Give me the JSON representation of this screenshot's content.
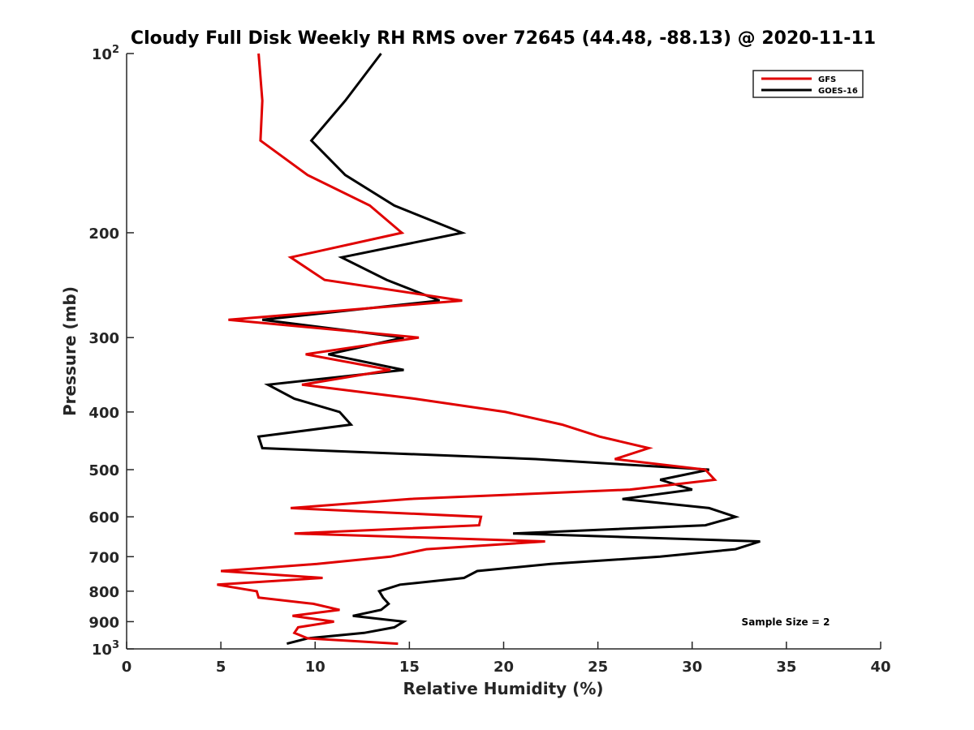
{
  "chart_data": {
    "type": "line",
    "title": "Cloudy Full Disk Weekly RH RMS over 72645 (44.48, -88.13) @ 2020-11-11",
    "xlabel": "Relative Humidity (%)",
    "ylabel": "Pressure (mb)",
    "xlim": [
      0,
      40
    ],
    "ylim": [
      100,
      1000
    ],
    "yscale": "log",
    "y_reversed": true,
    "grid": false,
    "legend_position": "top-right",
    "x_ticks": [
      0,
      5,
      10,
      15,
      20,
      25,
      30,
      35,
      40
    ],
    "y_ticks": [
      {
        "value": 100,
        "label": "10",
        "sup": "2"
      },
      {
        "value": 200,
        "label": "200",
        "sup": ""
      },
      {
        "value": 300,
        "label": "300",
        "sup": ""
      },
      {
        "value": 400,
        "label": "400",
        "sup": ""
      },
      {
        "value": 500,
        "label": "500",
        "sup": ""
      },
      {
        "value": 600,
        "label": "600",
        "sup": ""
      },
      {
        "value": 700,
        "label": "700",
        "sup": ""
      },
      {
        "value": 800,
        "label": "800",
        "sup": ""
      },
      {
        "value": 900,
        "label": "900",
        "sup": ""
      },
      {
        "value": 1000,
        "label": "10",
        "sup": "3"
      }
    ],
    "annotation": "Sample Size = 2",
    "series": [
      {
        "name": "GFS",
        "color": "#e00000",
        "points": [
          [
            7.0,
            100
          ],
          [
            7.2,
            120
          ],
          [
            7.1,
            140
          ],
          [
            9.6,
            160
          ],
          [
            12.9,
            180
          ],
          [
            14.6,
            200
          ],
          [
            8.7,
            220
          ],
          [
            10.5,
            240
          ],
          [
            17.8,
            260
          ],
          [
            5.4,
            280
          ],
          [
            15.5,
            300
          ],
          [
            9.5,
            320
          ],
          [
            14.0,
            340
          ],
          [
            9.3,
            360
          ],
          [
            15.3,
            380
          ],
          [
            20.1,
            400
          ],
          [
            23.1,
            420
          ],
          [
            25.1,
            440
          ],
          [
            27.7,
            460
          ],
          [
            25.9,
            480
          ],
          [
            30.7,
            500
          ],
          [
            31.2,
            520
          ],
          [
            26.7,
            540
          ],
          [
            15.0,
            560
          ],
          [
            8.7,
            580
          ],
          [
            18.8,
            600
          ],
          [
            18.7,
            620
          ],
          [
            8.9,
            640
          ],
          [
            22.2,
            660
          ],
          [
            15.9,
            680
          ],
          [
            14.0,
            700
          ],
          [
            10.1,
            720
          ],
          [
            5.0,
            740
          ],
          [
            10.4,
            760
          ],
          [
            4.8,
            780
          ],
          [
            6.9,
            800
          ],
          [
            7.0,
            820
          ],
          [
            9.9,
            840
          ],
          [
            11.3,
            860
          ],
          [
            8.8,
            880
          ],
          [
            11.0,
            900
          ],
          [
            9.1,
            920
          ],
          [
            8.9,
            940
          ],
          [
            9.6,
            960
          ],
          [
            14.4,
            980
          ]
        ]
      },
      {
        "name": "GOES-16",
        "color": "#000000",
        "points": [
          [
            13.5,
            100
          ],
          [
            11.6,
            120
          ],
          [
            9.8,
            140
          ],
          [
            11.6,
            160
          ],
          [
            14.2,
            180
          ],
          [
            17.8,
            200
          ],
          [
            11.4,
            220
          ],
          [
            13.8,
            240
          ],
          [
            16.6,
            260
          ],
          [
            7.2,
            280
          ],
          [
            14.7,
            300
          ],
          [
            10.7,
            320
          ],
          [
            14.7,
            340
          ],
          [
            7.5,
            360
          ],
          [
            8.9,
            380
          ],
          [
            11.3,
            400
          ],
          [
            11.9,
            420
          ],
          [
            7.0,
            440
          ],
          [
            7.2,
            460
          ],
          [
            21.7,
            480
          ],
          [
            30.9,
            500
          ],
          [
            28.3,
            520
          ],
          [
            30.0,
            540
          ],
          [
            26.3,
            560
          ],
          [
            30.9,
            580
          ],
          [
            32.3,
            600
          ],
          [
            30.7,
            620
          ],
          [
            20.5,
            640
          ],
          [
            33.6,
            660
          ],
          [
            32.3,
            680
          ],
          [
            28.3,
            700
          ],
          [
            22.5,
            720
          ],
          [
            18.6,
            740
          ],
          [
            17.9,
            760
          ],
          [
            14.5,
            780
          ],
          [
            13.4,
            800
          ],
          [
            13.6,
            820
          ],
          [
            13.9,
            840
          ],
          [
            13.5,
            860
          ],
          [
            12.0,
            880
          ],
          [
            14.7,
            900
          ],
          [
            14.2,
            920
          ],
          [
            12.6,
            940
          ],
          [
            9.6,
            960
          ],
          [
            8.5,
            980
          ]
        ]
      }
    ]
  }
}
